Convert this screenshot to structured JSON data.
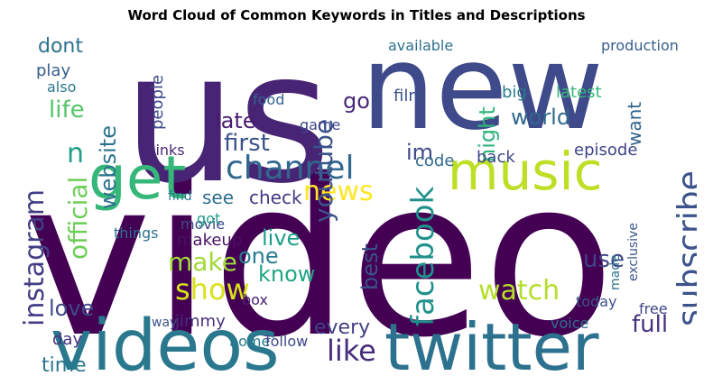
{
  "chart_data": {
    "type": "wordcloud",
    "title": "Word Cloud of Common Keywords in Titles and Descriptions",
    "background": "#ffffff",
    "words": [
      {
        "text": "video",
        "weight": 100,
        "color": "#440154"
      },
      {
        "text": "us",
        "weight": 92,
        "color": "#482475"
      },
      {
        "text": "new",
        "weight": 80,
        "color": "#3e4a89"
      },
      {
        "text": "videos",
        "weight": 56,
        "color": "#2a788e"
      },
      {
        "text": "twitter",
        "weight": 52,
        "color": "#2c728e"
      },
      {
        "text": "music",
        "weight": 50,
        "color": "#bddf26"
      },
      {
        "text": "get",
        "weight": 48,
        "color": "#35b779"
      },
      {
        "text": "channel",
        "weight": 34,
        "color": "#31688e"
      },
      {
        "text": "facebook",
        "weight": 32,
        "color": "#21918c"
      },
      {
        "text": "subscribe",
        "weight": 30,
        "color": "#3b528b"
      },
      {
        "text": "instagram",
        "weight": 28,
        "color": "#433e85"
      },
      {
        "text": "news",
        "weight": 27,
        "color": "#fde725"
      },
      {
        "text": "like",
        "weight": 26,
        "color": "#472d7b"
      },
      {
        "text": "watch",
        "weight": 26,
        "color": "#b5de2b"
      },
      {
        "text": "official",
        "weight": 25,
        "color": "#6ece58"
      },
      {
        "text": "youtube",
        "weight": 24,
        "color": "#3b528b"
      },
      {
        "text": "show",
        "weight": 24,
        "color": "#d8e219"
      },
      {
        "text": "make",
        "weight": 23,
        "color": "#a0da39"
      },
      {
        "text": "website",
        "weight": 22,
        "color": "#2c728e"
      },
      {
        "text": "world",
        "weight": 22,
        "color": "#31688e"
      },
      {
        "text": "full",
        "weight": 22,
        "color": "#46327e"
      },
      {
        "text": "im",
        "weight": 22,
        "color": "#3e4a89"
      },
      {
        "text": "live",
        "weight": 22,
        "color": "#1f9e89"
      },
      {
        "text": "go",
        "weight": 21,
        "color": "#482878"
      },
      {
        "text": "first",
        "weight": 21,
        "color": "#3b528b"
      },
      {
        "text": "life",
        "weight": 21,
        "color": "#54c568"
      },
      {
        "text": "night",
        "weight": 21,
        "color": "#2fb47c"
      },
      {
        "text": "late",
        "weight": 21,
        "color": "#4a1c6f"
      },
      {
        "text": "love",
        "weight": 20,
        "color": "#3f4889"
      },
      {
        "text": "one",
        "weight": 20,
        "color": "#287c8e"
      },
      {
        "text": "use",
        "weight": 20,
        "color": "#414487"
      },
      {
        "text": "know",
        "weight": 20,
        "color": "#21a685"
      },
      {
        "text": "best",
        "weight": 20,
        "color": "#3b528b"
      },
      {
        "text": "every",
        "weight": 19,
        "color": "#424086"
      },
      {
        "text": "time",
        "weight": 18,
        "color": "#2a788e"
      },
      {
        "text": "dont",
        "weight": 18,
        "color": "#2c728e"
      },
      {
        "text": "n",
        "weight": 18,
        "color": "#1f9e89"
      },
      {
        "text": "want",
        "weight": 17,
        "color": "#33638d"
      },
      {
        "text": "see",
        "weight": 17,
        "color": "#2e6e8e"
      },
      {
        "text": "check",
        "weight": 16,
        "color": "#443983"
      },
      {
        "text": "latest",
        "weight": 16,
        "color": "#35b779"
      },
      {
        "text": "play",
        "weight": 16,
        "color": "#365c8d"
      },
      {
        "text": "also",
        "weight": 15,
        "color": "#2a788e"
      },
      {
        "text": "people",
        "weight": 15,
        "color": "#3e4a89"
      },
      {
        "text": "day",
        "weight": 15,
        "color": "#46307e"
      },
      {
        "text": "makeup",
        "weight": 15,
        "color": "#471063"
      },
      {
        "text": "code",
        "weight": 15,
        "color": "#31688e"
      },
      {
        "text": "episode",
        "weight": 14,
        "color": "#404588"
      },
      {
        "text": "film",
        "weight": 14,
        "color": "#3b528b"
      },
      {
        "text": "big",
        "weight": 14,
        "color": "#287d8e"
      },
      {
        "text": "back",
        "weight": 14,
        "color": "#3e4989"
      },
      {
        "text": "jimmy",
        "weight": 14,
        "color": "#46307e"
      },
      {
        "text": "today",
        "weight": 14,
        "color": "#3b528b"
      },
      {
        "text": "game",
        "weight": 13,
        "color": "#3f4788"
      },
      {
        "text": "available",
        "weight": 13,
        "color": "#2d718e"
      },
      {
        "text": "production",
        "weight": 13,
        "color": "#365c8d"
      },
      {
        "text": "box",
        "weight": 13,
        "color": "#481f70"
      },
      {
        "text": "food",
        "weight": 12,
        "color": "#33638d"
      },
      {
        "text": "movie",
        "weight": 12,
        "color": "#3f4889"
      },
      {
        "text": "voice",
        "weight": 12,
        "color": "#2e6f8e"
      },
      {
        "text": "free",
        "weight": 12,
        "color": "#404688"
      },
      {
        "text": "made",
        "weight": 12,
        "color": "#2c738e"
      },
      {
        "text": "exclusive",
        "weight": 12,
        "color": "#3a548c"
      },
      {
        "text": "home",
        "weight": 12,
        "color": "#287c8e"
      },
      {
        "text": "follow",
        "weight": 12,
        "color": "#404688"
      },
      {
        "text": "links",
        "weight": 12,
        "color": "#482878"
      },
      {
        "text": "things",
        "weight": 12,
        "color": "#2c728e"
      },
      {
        "text": "got",
        "weight": 12,
        "color": "#1f9f88"
      },
      {
        "text": "way",
        "weight": 12,
        "color": "#3b528b"
      },
      {
        "text": "find",
        "weight": 12,
        "color": "#2a788e"
      },
      {
        "text": "website-",
        "weight": 0,
        "color": "#ffffff"
      }
    ]
  }
}
